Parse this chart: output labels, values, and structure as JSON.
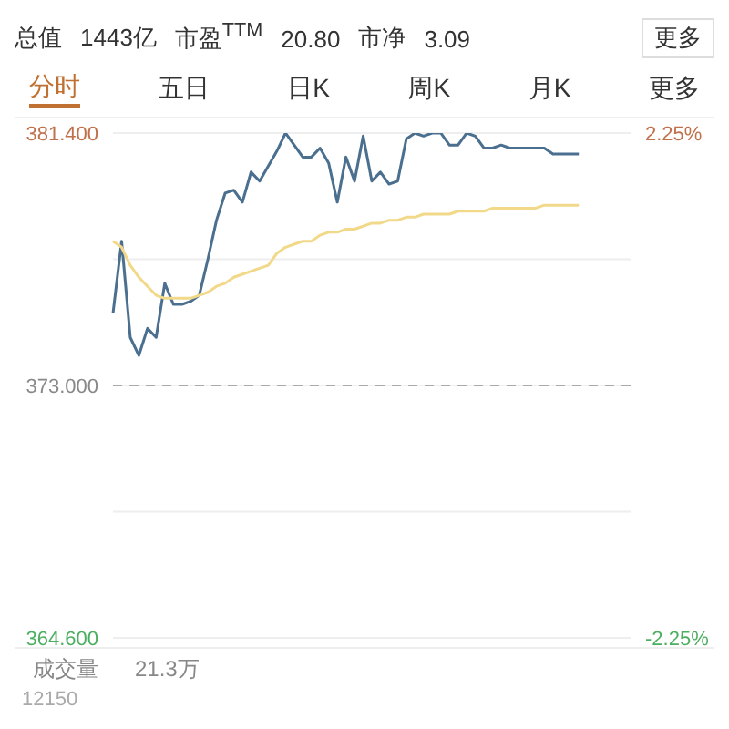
{
  "chart_data": {
    "type": "line",
    "annotations": [
      "总值",
      "1443亿",
      "市盈$^{TTM}$",
      "20.80",
      "市净",
      "3.09",
      "更多",
      "分时",
      "五日",
      "日K",
      "周K",
      "月K",
      "更多",
      "成交量",
      "21.3万",
      "12150"
    ],
    "categories": [
      null,
      null,
      null,
      null,
      null,
      null,
      null,
      null,
      null,
      null,
      null,
      null,
      null,
      null,
      null,
      null,
      null,
      null,
      null,
      null,
      null,
      null,
      null,
      null,
      null,
      null,
      null,
      null,
      null,
      null,
      null,
      null,
      null,
      null,
      null,
      null,
      null,
      null,
      null,
      null,
      null,
      null,
      null,
      null,
      null,
      null,
      null,
      null,
      null,
      null,
      null,
      null,
      null,
      null,
      null,
      null,
      null,
      null,
      null,
      null,
      null
    ],
    "ylim": [
      364.6,
      381.4
    ],
    "yticks": [
      {
        "value": 364.6,
        "label": "364.600"
      },
      {
        "value": 368.8,
        "label": null
      },
      {
        "value": 373,
        "label": "373.000"
      },
      {
        "value": 377.2,
        "label": null
      },
      {
        "value": 381.4,
        "label": "381.400"
      }
    ],
    "y2lim": [
      -2.25,
      2.25
    ],
    "y2ticks": [
      {
        "value": -2.25,
        "label": "-2.25%"
      },
      {
        "value": 2.25,
        "label": "2.25%"
      }
    ],
    "tick_labels": "y",
    "grid": "y",
    "marker": "none",
    "line_style": "solid",
    "ref_lines": [
      {
        "axis": "y",
        "value": 373,
        "color": "#aaaaaa",
        "line_style": "dashed"
      }
    ],
    "series": [
      {
        "color": "#4a6f8f",
        "values": [
          375.4,
          377.8,
          374.6,
          374.0,
          374.9,
          374.6,
          376.4,
          375.7,
          375.7,
          375.8,
          376.0,
          377.2,
          378.5,
          379.4,
          379.5,
          379.1,
          380.1,
          379.8,
          380.3,
          380.8,
          381.4,
          381.0,
          380.6,
          380.6,
          380.9,
          380.4,
          379.1,
          380.6,
          379.8,
          381.3,
          379.8,
          380.1,
          379.7,
          379.8,
          381.2,
          381.4,
          381.3,
          381.4,
          381.4,
          381.0,
          381.0,
          381.4,
          381.3,
          380.9,
          380.9,
          381.0,
          380.9,
          380.9,
          380.9,
          380.9,
          380.9,
          380.7,
          380.7,
          380.7,
          380.7,
          null,
          null,
          null,
          null,
          null,
          null
        ]
      },
      {
        "color": "#f2d98a",
        "values": [
          377.8,
          377.6,
          377.0,
          376.6,
          376.3,
          376.0,
          375.9,
          375.9,
          375.9,
          375.9,
          376.0,
          376.1,
          376.3,
          376.4,
          376.6,
          376.7,
          376.8,
          376.9,
          377.0,
          377.4,
          377.6,
          377.7,
          377.8,
          377.8,
          378.0,
          378.1,
          378.1,
          378.2,
          378.2,
          378.3,
          378.4,
          378.4,
          378.5,
          378.5,
          378.6,
          378.6,
          378.7,
          378.7,
          378.7,
          378.7,
          378.8,
          378.8,
          378.8,
          378.8,
          378.9,
          378.9,
          378.9,
          378.9,
          378.9,
          378.9,
          379.0,
          379.0,
          379.0,
          379.0,
          379.0,
          null,
          null,
          null,
          null,
          null,
          null
        ]
      }
    ]
  }
}
